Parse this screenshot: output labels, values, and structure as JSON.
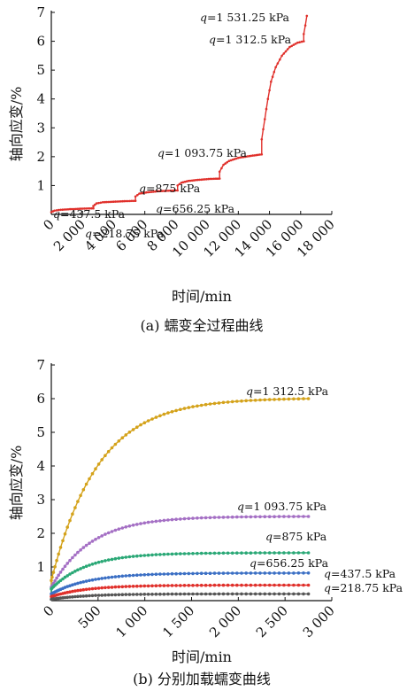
{
  "chart_data": [
    {
      "type": "line",
      "xlabel": "时间/min",
      "ylabel": "轴向应变/%",
      "caption": "(a) 蠕变全过程曲线",
      "xlim": [
        0,
        18000
      ],
      "ylim": [
        0,
        7
      ],
      "x_ticks": [
        "0",
        "2 000",
        "4 000",
        "6 000",
        "8 000",
        "10 000",
        "12 000",
        "14 000",
        "16 000",
        "18 000"
      ],
      "y_ticks": [
        "1",
        "2",
        "3",
        "4",
        "5",
        "6",
        "7"
      ],
      "series": [
        {
          "color": "#e0302b",
          "points": [
            [
              0,
              0.08
            ],
            [
              200,
              0.13
            ],
            [
              600,
              0.16
            ],
            [
              1200,
              0.18
            ],
            [
              2000,
              0.2
            ],
            [
              2700,
              0.21
            ],
            [
              2700,
              0.29
            ],
            [
              2900,
              0.38
            ],
            [
              3300,
              0.42
            ],
            [
              4000,
              0.44
            ],
            [
              4800,
              0.46
            ],
            [
              5400,
              0.47
            ],
            [
              5400,
              0.62
            ],
            [
              5650,
              0.72
            ],
            [
              6100,
              0.76
            ],
            [
              6800,
              0.8
            ],
            [
              7500,
              0.82
            ],
            [
              8100,
              0.83
            ],
            [
              8100,
              1.0
            ],
            [
              8350,
              1.1
            ],
            [
              8800,
              1.16
            ],
            [
              9500,
              1.2
            ],
            [
              10200,
              1.23
            ],
            [
              10800,
              1.24
            ],
            [
              10800,
              1.48
            ],
            [
              11050,
              1.72
            ],
            [
              11400,
              1.85
            ],
            [
              12000,
              1.96
            ],
            [
              12700,
              2.02
            ],
            [
              13500,
              2.08
            ],
            [
              13500,
              2.6
            ],
            [
              13700,
              3.3
            ],
            [
              13900,
              4.0
            ],
            [
              14100,
              4.6
            ],
            [
              14400,
              5.1
            ],
            [
              14800,
              5.5
            ],
            [
              15300,
              5.8
            ],
            [
              15800,
              5.95
            ],
            [
              16200,
              6.0
            ],
            [
              16200,
              6.25
            ],
            [
              16300,
              6.55
            ],
            [
              16400,
              6.88
            ]
          ]
        }
      ],
      "annotations": [
        {
          "prefix": "q",
          "text": "=1 531.25 kPa"
        },
        {
          "prefix": "q",
          "text": "=1 312.5 kPa"
        },
        {
          "prefix": "q",
          "text": "=1 093.75 kPa"
        },
        {
          "prefix": "q",
          "text": "=875 kPa"
        },
        {
          "prefix": "q",
          "text": "=656.25 kPa"
        },
        {
          "prefix": "q",
          "text": "=437.5 kPa"
        },
        {
          "prefix": "q",
          "text": "=218.75 kPa"
        }
      ]
    },
    {
      "type": "line",
      "xlabel": "时间/min",
      "ylabel": "轴向应变/%",
      "caption": "(b) 分别加载蠕变曲线",
      "xlim": [
        0,
        3000
      ],
      "ylim": [
        0,
        7
      ],
      "x_ticks": [
        "0",
        "500",
        "1 000",
        "1 500",
        "2 000",
        "2 500",
        "3 000"
      ],
      "y_ticks": [
        "1",
        "2",
        "3",
        "4",
        "5",
        "6",
        "7"
      ],
      "series": [
        {
          "color": "#d4a21a",
          "label": "=1 312.5 kPa",
          "final": 6.0,
          "initial": 0.6,
          "k": 500
        },
        {
          "color": "#a46fc4",
          "label": "=1 093.75 kPa",
          "final": 2.5,
          "initial": 0.4,
          "k": 420
        },
        {
          "color": "#2aa876",
          "label": "=875 kPa",
          "final": 1.42,
          "initial": 0.35,
          "k": 380
        },
        {
          "color": "#3b6fc4",
          "label": "=656.25 kPa",
          "final": 0.82,
          "initial": 0.2,
          "k": 400
        },
        {
          "color": "#e0302b",
          "label": "=437.5 kPa",
          "final": 0.46,
          "initial": 0.12,
          "k": 380
        },
        {
          "color": "#555555",
          "label": "=218.75 kPa",
          "final": 0.2,
          "initial": 0.04,
          "k": 380
        }
      ],
      "label_prefix": "q"
    }
  ]
}
